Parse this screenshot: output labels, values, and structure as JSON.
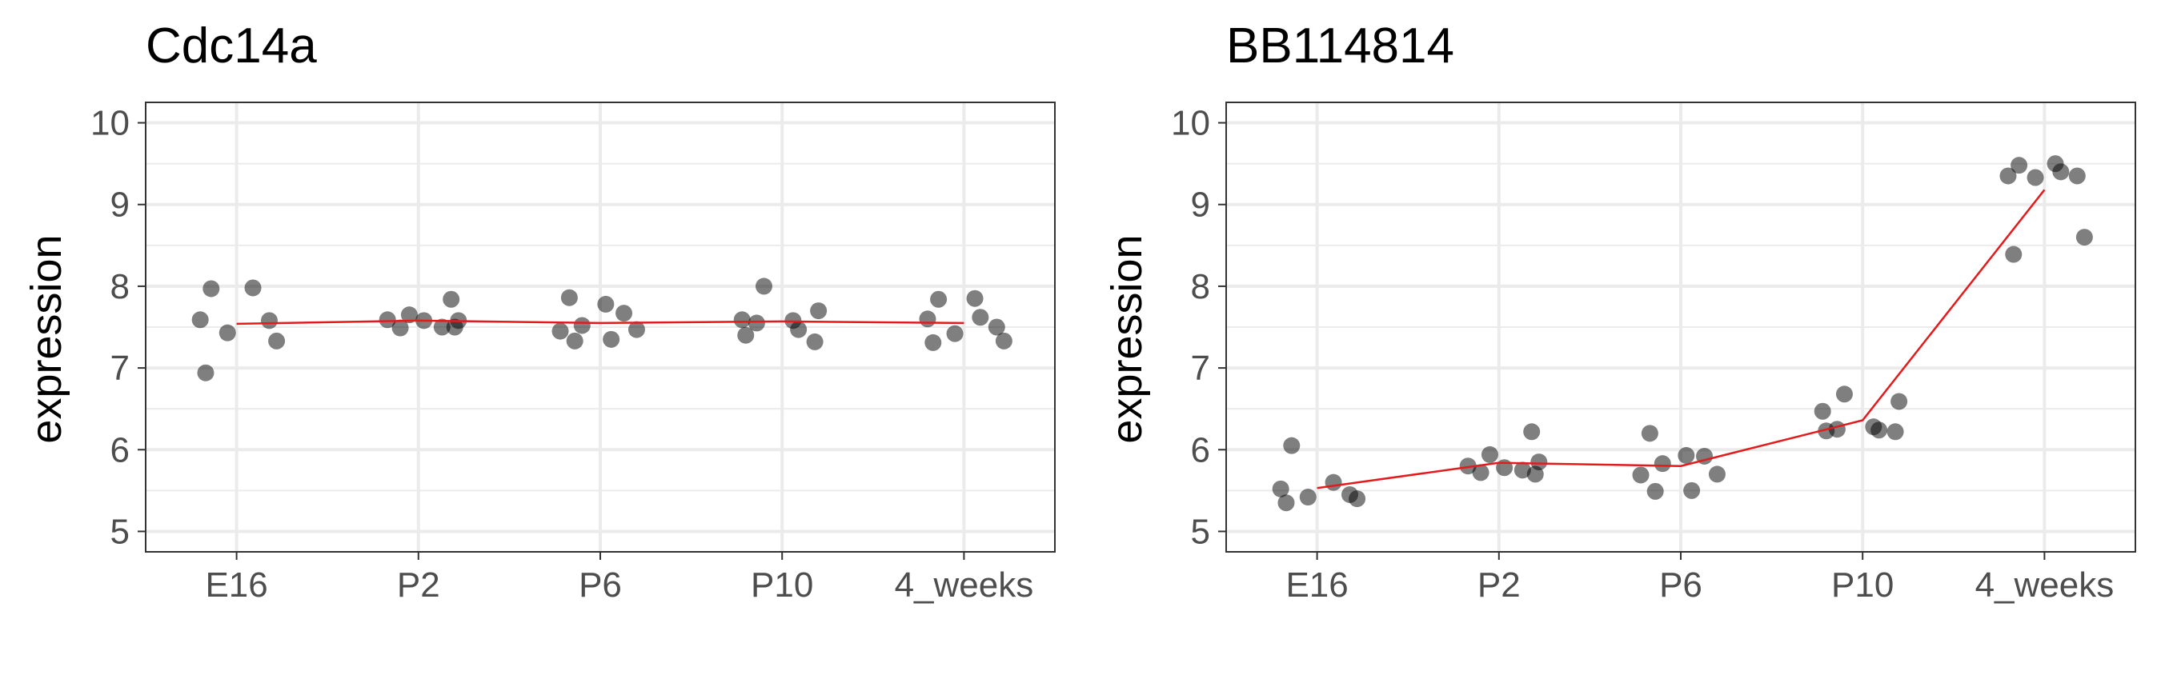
{
  "chart_data": [
    {
      "type": "scatter",
      "title": "Cdc14a",
      "xlabel": "",
      "ylabel": "expression",
      "categories": [
        "E16",
        "P2",
        "P6",
        "P10",
        "4_weeks"
      ],
      "yticks": [
        5,
        6,
        7,
        8,
        9,
        10
      ],
      "ylim": [
        4.75,
        10.25
      ],
      "grid": true,
      "points": [
        {
          "x": "E16",
          "y": 7.97
        },
        {
          "x": "E16",
          "y": 7.98
        },
        {
          "x": "E16",
          "y": 7.59
        },
        {
          "x": "E16",
          "y": 7.58
        },
        {
          "x": "E16",
          "y": 7.43
        },
        {
          "x": "E16",
          "y": 7.33
        },
        {
          "x": "E16",
          "y": 6.94
        },
        {
          "x": "P2",
          "y": 7.84
        },
        {
          "x": "P2",
          "y": 7.65
        },
        {
          "x": "P2",
          "y": 7.58
        },
        {
          "x": "P2",
          "y": 7.59
        },
        {
          "x": "P2",
          "y": 7.58
        },
        {
          "x": "P2",
          "y": 7.5
        },
        {
          "x": "P2",
          "y": 7.49
        },
        {
          "x": "P2",
          "y": 7.5
        },
        {
          "x": "P6",
          "y": 7.86
        },
        {
          "x": "P6",
          "y": 7.78
        },
        {
          "x": "P6",
          "y": 7.67
        },
        {
          "x": "P6",
          "y": 7.52
        },
        {
          "x": "P6",
          "y": 7.47
        },
        {
          "x": "P6",
          "y": 7.45
        },
        {
          "x": "P6",
          "y": 7.35
        },
        {
          "x": "P6",
          "y": 7.33
        },
        {
          "x": "P10",
          "y": 8.0
        },
        {
          "x": "P10",
          "y": 7.7
        },
        {
          "x": "P10",
          "y": 7.59
        },
        {
          "x": "P10",
          "y": 7.58
        },
        {
          "x": "P10",
          "y": 7.55
        },
        {
          "x": "P10",
          "y": 7.47
        },
        {
          "x": "P10",
          "y": 7.4
        },
        {
          "x": "P10",
          "y": 7.32
        },
        {
          "x": "4_weeks",
          "y": 7.85
        },
        {
          "x": "4_weeks",
          "y": 7.84
        },
        {
          "x": "4_weeks",
          "y": 7.62
        },
        {
          "x": "4_weeks",
          "y": 7.6
        },
        {
          "x": "4_weeks",
          "y": 7.5
        },
        {
          "x": "4_weeks",
          "y": 7.42
        },
        {
          "x": "4_weeks",
          "y": 7.33
        },
        {
          "x": "4_weeks",
          "y": 7.31
        }
      ],
      "mean_line": {
        "color": "#e41a1c",
        "values": [
          7.54,
          7.58,
          7.55,
          7.57,
          7.55
        ]
      },
      "point_color": "#000000",
      "point_opacity": 0.5
    },
    {
      "type": "scatter",
      "title": "BB114814",
      "xlabel": "",
      "ylabel": "expression",
      "categories": [
        "E16",
        "P2",
        "P6",
        "P10",
        "4_weeks"
      ],
      "yticks": [
        5,
        6,
        7,
        8,
        9,
        10
      ],
      "ylim": [
        4.75,
        10.25
      ],
      "grid": true,
      "points": [
        {
          "x": "E16",
          "y": 6.05
        },
        {
          "x": "E16",
          "y": 5.6
        },
        {
          "x": "E16",
          "y": 5.52
        },
        {
          "x": "E16",
          "y": 5.45
        },
        {
          "x": "E16",
          "y": 5.42
        },
        {
          "x": "E16",
          "y": 5.4
        },
        {
          "x": "E16",
          "y": 5.35
        },
        {
          "x": "P2",
          "y": 6.22
        },
        {
          "x": "P2",
          "y": 5.94
        },
        {
          "x": "P2",
          "y": 5.85
        },
        {
          "x": "P2",
          "y": 5.8
        },
        {
          "x": "P2",
          "y": 5.78
        },
        {
          "x": "P2",
          "y": 5.75
        },
        {
          "x": "P2",
          "y": 5.72
        },
        {
          "x": "P2",
          "y": 5.7
        },
        {
          "x": "P6",
          "y": 6.2
        },
        {
          "x": "P6",
          "y": 5.93
        },
        {
          "x": "P6",
          "y": 5.92
        },
        {
          "x": "P6",
          "y": 5.83
        },
        {
          "x": "P6",
          "y": 5.7
        },
        {
          "x": "P6",
          "y": 5.69
        },
        {
          "x": "P6",
          "y": 5.5
        },
        {
          "x": "P6",
          "y": 5.49
        },
        {
          "x": "P10",
          "y": 6.68
        },
        {
          "x": "P10",
          "y": 6.59
        },
        {
          "x": "P10",
          "y": 6.47
        },
        {
          "x": "P10",
          "y": 6.28
        },
        {
          "x": "P10",
          "y": 6.25
        },
        {
          "x": "P10",
          "y": 6.24
        },
        {
          "x": "P10",
          "y": 6.23
        },
        {
          "x": "P10",
          "y": 6.22
        },
        {
          "x": "4_weeks",
          "y": 9.5
        },
        {
          "x": "4_weeks",
          "y": 9.48
        },
        {
          "x": "4_weeks",
          "y": 9.4
        },
        {
          "x": "4_weeks",
          "y": 9.35
        },
        {
          "x": "4_weeks",
          "y": 9.35
        },
        {
          "x": "4_weeks",
          "y": 9.33
        },
        {
          "x": "4_weeks",
          "y": 8.6
        },
        {
          "x": "4_weeks",
          "y": 8.39
        }
      ],
      "mean_line": {
        "color": "#e41a1c",
        "values": [
          5.53,
          5.84,
          5.8,
          6.36,
          9.18
        ]
      },
      "point_color": "#000000",
      "point_opacity": 0.5
    }
  ]
}
